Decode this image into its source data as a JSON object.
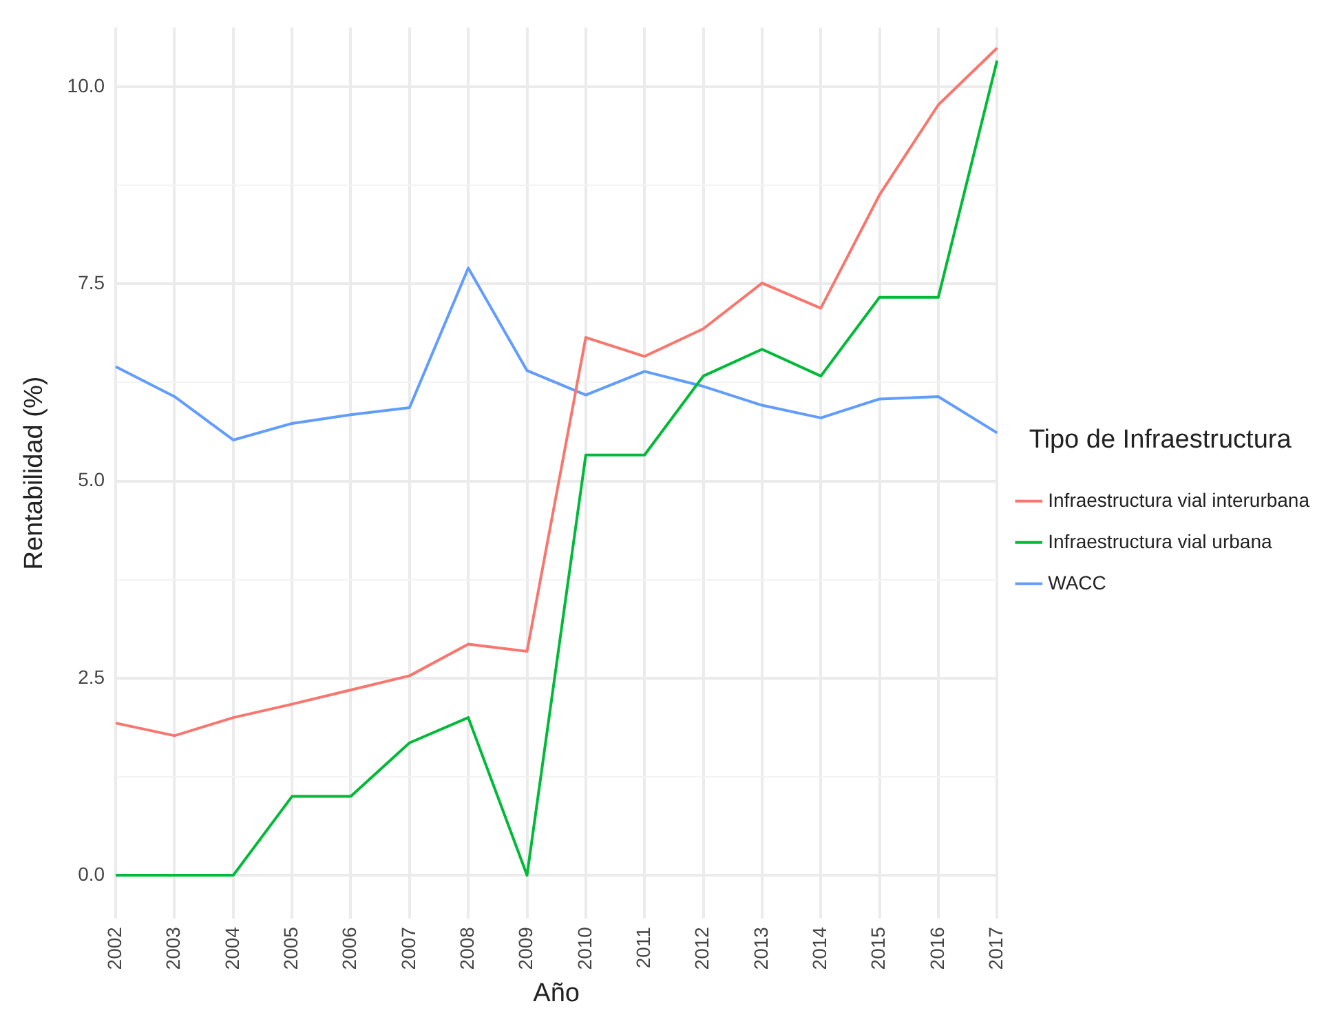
{
  "chart_data": {
    "type": "line",
    "xlabel": "Año",
    "ylabel": "Rentabilidad (%)",
    "legend_title": "Tipo de Infraestructura",
    "legend": "right",
    "grid": true,
    "marker": "none",
    "line_style": "solid",
    "categories": [
      "2002",
      "2003",
      "2004",
      "2005",
      "2006",
      "2007",
      "2008",
      "2009",
      "2010",
      "2011",
      "2012",
      "2013",
      "2014",
      "2015",
      "2016",
      "2017"
    ],
    "ylim": [
      -0.55,
      10.75
    ],
    "yticks": [
      {
        "value": 0,
        "label": "0.0"
      },
      {
        "value": 1.25,
        "label": null
      },
      {
        "value": 2.5,
        "label": "2.5"
      },
      {
        "value": 3.75,
        "label": null
      },
      {
        "value": 5,
        "label": "5.0"
      },
      {
        "value": 6.25,
        "label": null
      },
      {
        "value": 7.5,
        "label": "7.5"
      },
      {
        "value": 8.75,
        "label": null
      },
      {
        "value": 10,
        "label": "10.0"
      }
    ],
    "series": [
      {
        "name": "Infraestructura vial interurbana",
        "color": "#f8766d",
        "values": [
          1.93,
          1.77,
          2.0,
          2.17,
          2.35,
          2.53,
          2.93,
          2.84,
          6.82,
          6.58,
          6.93,
          7.51,
          7.19,
          8.63,
          9.77,
          10.49
        ]
      },
      {
        "name": "Infraestructura vial urbana",
        "color": "#00ba38",
        "values": [
          0,
          0,
          0,
          1.0,
          1.0,
          1.68,
          2.0,
          0,
          5.33,
          5.33,
          6.33,
          6.67,
          6.33,
          7.33,
          7.33,
          10.33
        ]
      },
      {
        "name": "WACC",
        "color": "#619cff",
        "values": [
          6.45,
          6.07,
          5.52,
          5.73,
          5.84,
          5.93,
          7.7,
          6.4,
          6.09,
          6.39,
          6.2,
          5.96,
          5.8,
          6.04,
          6.07,
          5.61
        ]
      }
    ]
  }
}
